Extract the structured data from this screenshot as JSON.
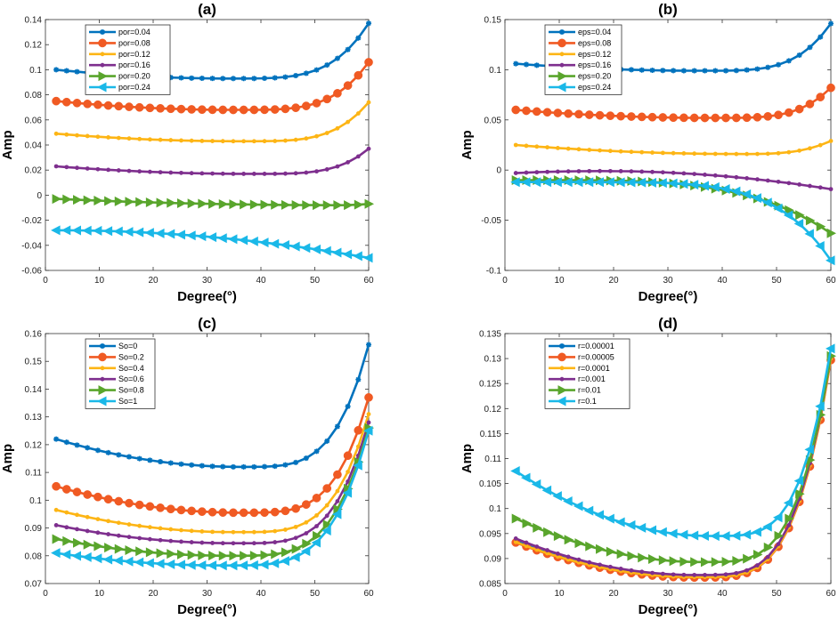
{
  "chart_data": [
    {
      "id": "a",
      "type": "line",
      "title": "(a)",
      "xlabel": "Degree(°)",
      "ylabel": "Amp",
      "xlim": [
        0,
        60
      ],
      "ylim": [
        -0.06,
        0.14
      ],
      "xticks": [
        "0",
        "10",
        "20",
        "30",
        "40",
        "50",
        "60"
      ],
      "yticks": [
        "-0.06",
        "-0.04",
        "-0.02",
        "0",
        "0.02",
        "0.04",
        "0.06",
        "0.08",
        "0.1",
        "0.12",
        "0.14"
      ],
      "x": [
        2,
        60
      ],
      "legend_position": "top-left",
      "series": [
        {
          "name": "por=0.04",
          "color": "#0072bd",
          "marker": "star",
          "a": 0.1,
          "m": 0.093,
          "xm": 34,
          "e": 0.137,
          "p": 4
        },
        {
          "name": "por=0.08",
          "color": "#f05a23",
          "marker": "circle",
          "a": 0.075,
          "m": 0.068,
          "xm": 35,
          "e": 0.106,
          "p": 4
        },
        {
          "name": "por=0.12",
          "color": "#fdb515",
          "marker": "dot",
          "a": 0.049,
          "m": 0.043,
          "xm": 36,
          "e": 0.074,
          "p": 4
        },
        {
          "name": "por=0.16",
          "color": "#7e2f8e",
          "marker": "dot",
          "a": 0.023,
          "m": 0.017,
          "xm": 38,
          "e": 0.037,
          "p": 4
        },
        {
          "name": "por=0.20",
          "color": "#59a52c",
          "marker": "tri-right",
          "a": -0.003,
          "m": -0.008,
          "xm": 55,
          "e": -0.007,
          "p": 2
        },
        {
          "name": "por=0.24",
          "color": "#1ab8e8",
          "marker": "tri-left",
          "a": -0.028,
          "m": -0.028,
          "xm": 2,
          "e": -0.05,
          "p": 2
        }
      ]
    },
    {
      "id": "b",
      "type": "line",
      "title": "(b)",
      "xlabel": "Degree(°)",
      "ylabel": "Amp",
      "xlim": [
        0,
        60
      ],
      "ylim": [
        -0.1,
        0.15
      ],
      "xticks": [
        "0",
        "10",
        "20",
        "30",
        "40",
        "50",
        "60"
      ],
      "yticks": [
        "-0.1",
        "-0.05",
        "0",
        "0.05",
        "0.1",
        "0.15"
      ],
      "x": [
        2,
        60
      ],
      "legend_position": "top-left",
      "series": [
        {
          "name": "eps=0.04",
          "color": "#0072bd",
          "marker": "star",
          "a": 0.106,
          "m": 0.099,
          "xm": 36,
          "e": 0.146,
          "p": 4
        },
        {
          "name": "eps=0.08",
          "color": "#f05a23",
          "marker": "circle",
          "a": 0.06,
          "m": 0.052,
          "xm": 38,
          "e": 0.082,
          "p": 4
        },
        {
          "name": "eps=0.12",
          "color": "#fdb515",
          "marker": "dot",
          "a": 0.025,
          "m": 0.016,
          "xm": 44,
          "e": 0.029,
          "p": 3
        },
        {
          "name": "eps=0.16",
          "color": "#7e2f8e",
          "marker": "dot",
          "a": -0.003,
          "m": -0.001,
          "xm": 18,
          "e": -0.019,
          "p": 2
        },
        {
          "name": "eps=0.20",
          "color": "#59a52c",
          "marker": "tri-right",
          "a": -0.01,
          "m": -0.01,
          "xm": 2,
          "e": -0.063,
          "p": 4
        },
        {
          "name": "eps=0.24",
          "color": "#1ab8e8",
          "marker": "tri-left",
          "a": -0.012,
          "m": -0.012,
          "xm": 2,
          "e": -0.09,
          "p": 6
        }
      ]
    },
    {
      "id": "c",
      "type": "line",
      "title": "(c)",
      "xlabel": "Degree(°)",
      "ylabel": "Amp",
      "xlim": [
        0,
        60
      ],
      "ylim": [
        0.07,
        0.16
      ],
      "xticks": [
        "0",
        "10",
        "20",
        "30",
        "40",
        "50",
        "60"
      ],
      "yticks": [
        "0.07",
        "0.08",
        "0.09",
        "0.1",
        "0.11",
        "0.12",
        "0.13",
        "0.14",
        "0.15",
        "0.16"
      ],
      "x": [
        2,
        60
      ],
      "legend_position": "top-left",
      "series": [
        {
          "name": "So=0",
          "color": "#0072bd",
          "marker": "star",
          "a": 0.122,
          "m": 0.112,
          "xm": 36,
          "e": 0.156,
          "p": 4
        },
        {
          "name": "So=0.2",
          "color": "#f05a23",
          "marker": "circle",
          "a": 0.105,
          "m": 0.0955,
          "xm": 36,
          "e": 0.137,
          "p": 4
        },
        {
          "name": "So=0.4",
          "color": "#fdb515",
          "marker": "dot",
          "a": 0.0965,
          "m": 0.0885,
          "xm": 35,
          "e": 0.131,
          "p": 4
        },
        {
          "name": "So=0.6",
          "color": "#7e2f8e",
          "marker": "dot",
          "a": 0.091,
          "m": 0.0845,
          "xm": 35,
          "e": 0.128,
          "p": 4
        },
        {
          "name": "So=0.8",
          "color": "#59a52c",
          "marker": "tri-right",
          "a": 0.086,
          "m": 0.08,
          "xm": 34,
          "e": 0.126,
          "p": 4
        },
        {
          "name": "So=1",
          "color": "#1ab8e8",
          "marker": "tri-left",
          "a": 0.081,
          "m": 0.0765,
          "xm": 33,
          "e": 0.125,
          "p": 4
        }
      ]
    },
    {
      "id": "d",
      "type": "line",
      "title": "(d)",
      "xlabel": "Degree(°)",
      "ylabel": "Amp",
      "xlim": [
        0,
        60
      ],
      "ylim": [
        0.085,
        0.135
      ],
      "xticks": [
        "0",
        "10",
        "20",
        "30",
        "40",
        "50",
        "60"
      ],
      "yticks": [
        "0.085",
        "0.09",
        "0.095",
        "0.1",
        "0.105",
        "0.11",
        "0.115",
        "0.12",
        "0.125",
        "0.13",
        "0.135"
      ],
      "x": [
        2,
        60
      ],
      "legend_position": "top-left",
      "series": [
        {
          "name": "r=0.00001",
          "color": "#0072bd",
          "marker": "star",
          "a": 0.0935,
          "m": 0.0863,
          "xm": 35,
          "e": 0.13,
          "p": 4
        },
        {
          "name": "r=0.00005",
          "color": "#f05a23",
          "marker": "circle",
          "a": 0.0932,
          "m": 0.0862,
          "xm": 35,
          "e": 0.1297,
          "p": 4
        },
        {
          "name": "r=0.0001",
          "color": "#fdb515",
          "marker": "dot",
          "a": 0.0933,
          "m": 0.0863,
          "xm": 35,
          "e": 0.13,
          "p": 4
        },
        {
          "name": "r=0.001",
          "color": "#7e2f8e",
          "marker": "dot",
          "a": 0.094,
          "m": 0.0867,
          "xm": 35,
          "e": 0.1305,
          "p": 4
        },
        {
          "name": "r=0.01",
          "color": "#59a52c",
          "marker": "tri-right",
          "a": 0.098,
          "m": 0.0893,
          "xm": 36,
          "e": 0.1305,
          "p": 4
        },
        {
          "name": "r=0.1",
          "color": "#1ab8e8",
          "marker": "tri-left",
          "a": 0.1075,
          "m": 0.0945,
          "xm": 38,
          "e": 0.132,
          "p": 4
        }
      ]
    }
  ]
}
